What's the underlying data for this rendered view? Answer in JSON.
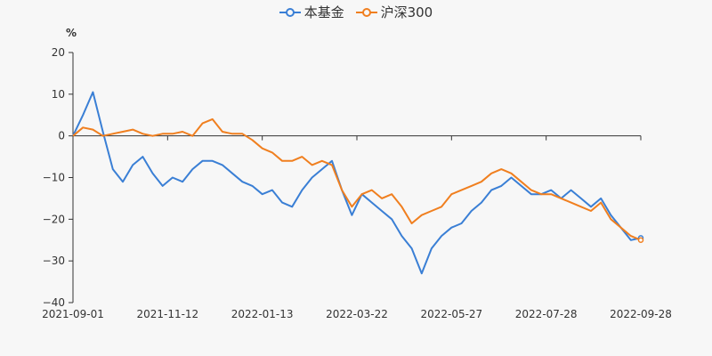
{
  "chart_data": {
    "type": "line",
    "ylabel": "%",
    "ylim": [
      -40,
      20
    ],
    "yticks": [
      20,
      10,
      0,
      -10,
      -20,
      -30,
      -40
    ],
    "xticks": [
      "2021-09-01",
      "2021-11-12",
      "2022-01-13",
      "2022-03-22",
      "2022-05-27",
      "2022-07-28",
      "2022-09-28"
    ],
    "x": [
      "2021-09-01",
      "2021-09-08",
      "2021-09-15",
      "2021-09-22",
      "2021-09-29",
      "2021-10-06",
      "2021-10-13",
      "2021-10-20",
      "2021-10-27",
      "2021-11-03",
      "2021-11-10",
      "2021-11-17",
      "2021-11-24",
      "2021-12-01",
      "2021-12-08",
      "2021-12-15",
      "2021-12-22",
      "2021-12-29",
      "2022-01-05",
      "2022-01-12",
      "2022-01-19",
      "2022-01-26",
      "2022-02-02",
      "2022-02-09",
      "2022-02-16",
      "2022-02-23",
      "2022-03-02",
      "2022-03-09",
      "2022-03-16",
      "2022-03-23",
      "2022-03-30",
      "2022-04-06",
      "2022-04-13",
      "2022-04-20",
      "2022-04-27",
      "2022-05-04",
      "2022-05-11",
      "2022-05-18",
      "2022-05-25",
      "2022-06-01",
      "2022-06-08",
      "2022-06-15",
      "2022-06-22",
      "2022-06-29",
      "2022-07-06",
      "2022-07-13",
      "2022-07-20",
      "2022-07-27",
      "2022-08-03",
      "2022-08-10",
      "2022-08-17",
      "2022-08-24",
      "2022-08-31",
      "2022-09-07",
      "2022-09-14",
      "2022-09-21",
      "2022-09-28",
      "2022-10-05"
    ],
    "series": [
      {
        "name": "本基金",
        "color": "#3a7fd5",
        "values": [
          0,
          5,
          10.5,
          1,
          -8,
          -11,
          -7,
          -5,
          -9,
          -12,
          -10,
          -11,
          -8,
          -6,
          -6,
          -7,
          -9,
          -11,
          -12,
          -14,
          -13,
          -16,
          -17,
          -13,
          -10,
          -8,
          -6,
          -13,
          -19,
          -14,
          -16,
          -18,
          -20,
          -24,
          -27,
          -33,
          -27,
          -24,
          -22,
          -21,
          -18,
          -16,
          -13,
          -12,
          -10,
          -12,
          -14,
          -14,
          -13,
          -15,
          -13,
          -15,
          -17,
          -15,
          -19,
          -22,
          -25,
          -24.5
        ]
      },
      {
        "name": "沪深300",
        "color": "#f07f1f",
        "values": [
          0,
          2,
          1.5,
          0,
          0.5,
          1,
          1.5,
          0.5,
          0,
          0.5,
          0.5,
          1,
          0,
          3,
          4,
          1,
          0.5,
          0.5,
          -1,
          -3,
          -4,
          -6,
          -6,
          -5,
          -7,
          -6,
          -7,
          -13,
          -17,
          -14,
          -13,
          -15,
          -14,
          -17,
          -21,
          -19,
          -18,
          -17,
          -14,
          -13,
          -12,
          -11,
          -9,
          -8,
          -9,
          -11,
          -13,
          -14,
          -14,
          -15,
          -16,
          -17,
          -18,
          -16,
          -20,
          -22,
          -24,
          -25
        ]
      }
    ]
  }
}
